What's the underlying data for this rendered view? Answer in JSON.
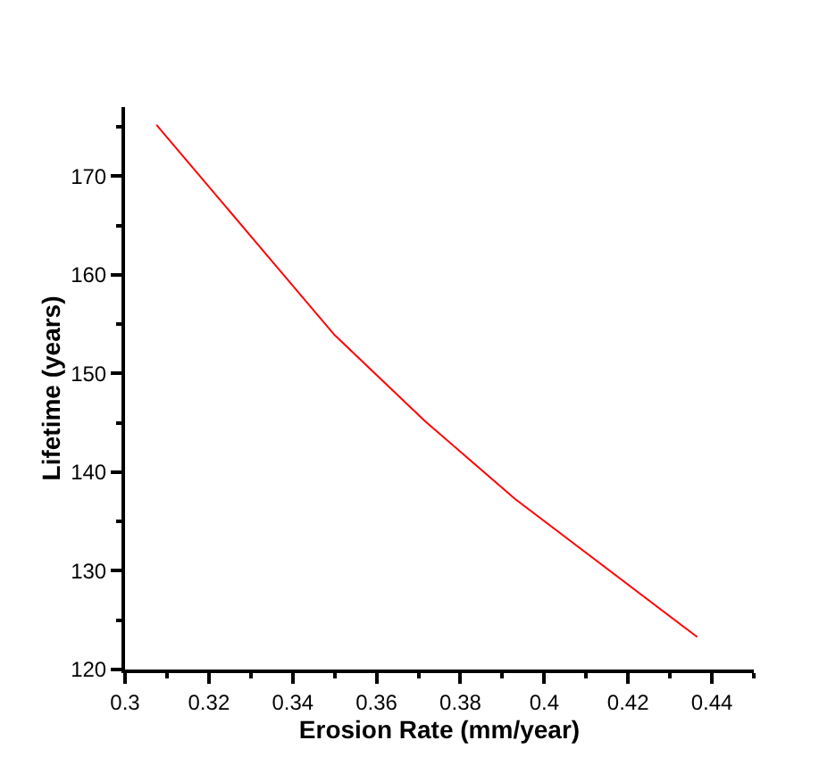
{
  "chart_data": {
    "type": "line",
    "xlabel": "Erosion Rate (mm/year)",
    "ylabel": "Lifetime (years)",
    "x": [
      0.3075,
      0.35,
      0.3715,
      0.393,
      0.4365
    ],
    "series": [
      {
        "color": "#ff0000",
        "values": [
          175.2,
          153.9,
          145.2,
          137.3,
          123.3
        ]
      }
    ],
    "xlim": [
      0.3,
      0.45
    ],
    "xticks": [
      {
        "value": 0.3,
        "label": "0.3"
      },
      0.32,
      0.34,
      0.36,
      0.38,
      {
        "value": 0.4,
        "label": "0.4"
      },
      0.42,
      0.44
    ],
    "ylim": [
      120,
      177
    ],
    "yticks": [
      120,
      130,
      140,
      150,
      160,
      170
    ],
    "legend": false,
    "marker": "none",
    "line_style": "solid"
  }
}
